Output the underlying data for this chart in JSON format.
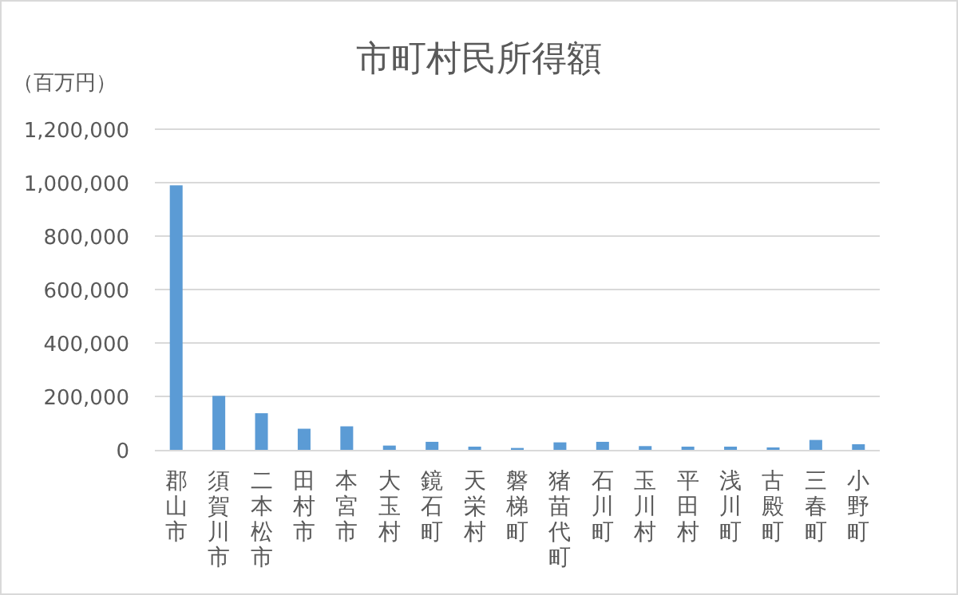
{
  "chart_data": {
    "type": "bar",
    "title": "市町村民所得額",
    "ylabel": "（百万円）",
    "categories": [
      "郡山市",
      "須賀川市",
      "二本松市",
      "田村市",
      "本宮市",
      "大玉村",
      "鏡石町",
      "天栄村",
      "磐梯町",
      "猪苗代町",
      "石川町",
      "玉川村",
      "平田村",
      "浅川町",
      "古殿町",
      "三春町",
      "小野町"
    ],
    "values": [
      990000,
      202000,
      137000,
      79000,
      88000,
      16000,
      30000,
      12000,
      7000,
      28000,
      30000,
      14000,
      12000,
      12000,
      9000,
      37000,
      21000
    ],
    "color": "#5b9bd5",
    "ylim": [
      0,
      1200000
    ],
    "yticks": [
      {
        "value": 0,
        "label": "0"
      },
      {
        "value": 200000,
        "label": "200,000"
      },
      {
        "value": 400000,
        "label": "400,000"
      },
      {
        "value": 600000,
        "label": "600,000"
      },
      {
        "value": 800000,
        "label": "800,000"
      },
      {
        "value": 1000000,
        "label": "1,000,000"
      },
      {
        "value": 1200000,
        "label": "1,200,000"
      }
    ],
    "grid": "y"
  }
}
